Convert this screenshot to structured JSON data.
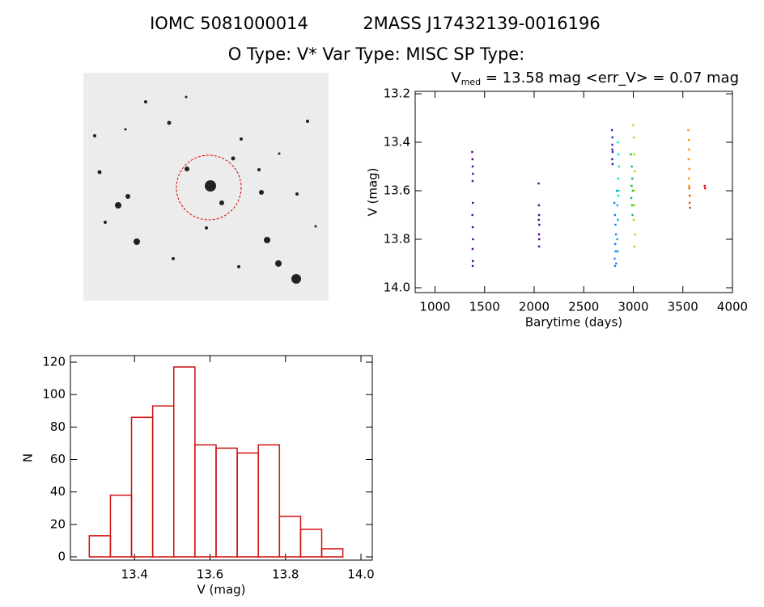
{
  "header": {
    "id1": "IOMC 5081000014",
    "id2": "2MASS J17432139-0016196",
    "line2": "O Type: V*  Var Type: MISC  SP Type:"
  },
  "chart_data": [
    {
      "type": "scatter",
      "title": {
        "main": "V",
        "sub": "med",
        "rest": " = 13.58 mag <err_V> = 0.07 mag"
      },
      "x_label": "Barytime (days)",
      "y_label": "V (mag)",
      "xlim": [
        800,
        4000
      ],
      "xticks": [
        1000,
        1500,
        2000,
        2500,
        3000,
        3500,
        4000
      ],
      "ylim": [
        14.02,
        13.19
      ],
      "yticks": [
        13.2,
        13.4,
        13.6,
        13.8,
        {
          "value": 14,
          "label": "14.0"
        }
      ],
      "series": [
        {
          "color": "#5a0090",
          "x": [
            1375,
            1378,
            1380,
            1382,
            1379,
            1381,
            1377,
            1380,
            1383,
            1379,
            1381,
            1380
          ],
          "values": [
            13.44,
            13.47,
            13.5,
            13.53,
            13.56,
            13.65,
            13.7,
            13.75,
            13.8,
            13.84,
            13.89,
            13.91
          ]
        },
        {
          "color": "#4b0090",
          "x": [
            2045,
            2048,
            2050,
            2052,
            2049,
            2051,
            2050,
            2047
          ],
          "values": [
            13.57,
            13.66,
            13.7,
            13.74,
            13.78,
            13.8,
            13.83,
            13.72
          ]
        },
        {
          "color": "#2020c0",
          "x": [
            2785,
            2790,
            2788,
            2792,
            2787,
            2791,
            2789
          ],
          "values": [
            13.35,
            13.38,
            13.41,
            13.44,
            13.47,
            13.49,
            13.43
          ]
        },
        {
          "color": "#1e78ff",
          "x": [
            2810,
            2815,
            2820,
            2825,
            2818,
            2822,
            2812,
            2828,
            2816
          ],
          "values": [
            13.65,
            13.7,
            13.74,
            13.78,
            13.82,
            13.85,
            13.88,
            13.9,
            13.91
          ]
        },
        {
          "color": "#00a8e8",
          "x": [
            2835,
            2840,
            2845,
            2838,
            2842
          ],
          "values": [
            13.6,
            13.66,
            13.72,
            13.8,
            13.85
          ]
        },
        {
          "color": "#00e0d0",
          "x": [
            2845,
            2850,
            2855,
            2848,
            2852,
            2849
          ],
          "values": [
            13.4,
            13.45,
            13.5,
            13.55,
            13.6,
            13.62
          ]
        },
        {
          "color": "#00c040",
          "x": [
            2975,
            2985,
            2990,
            2995,
            2980,
            2988,
            2992,
            2983
          ],
          "values": [
            13.45,
            13.5,
            13.55,
            13.6,
            13.63,
            13.66,
            13.7,
            13.58
          ]
        },
        {
          "color": "#a0e000",
          "x": [
            3000,
            3005,
            3010,
            3015,
            3008,
            3012,
            3003,
            3018,
            3010
          ],
          "values": [
            13.33,
            13.38,
            13.45,
            13.52,
            13.6,
            13.66,
            13.72,
            13.78,
            13.83
          ]
        },
        {
          "color": "#ff9000",
          "x": [
            3555,
            3560,
            3562,
            3558,
            3565,
            3560,
            3563
          ],
          "values": [
            13.35,
            13.39,
            13.43,
            13.47,
            13.51,
            13.55,
            13.58
          ]
        },
        {
          "color": "#d05000",
          "x": [
            3565,
            3570,
            3568,
            3572
          ],
          "values": [
            13.59,
            13.62,
            13.65,
            13.67
          ]
        },
        {
          "color": "#e00000",
          "x": [
            3720,
            3725
          ],
          "values": [
            13.58,
            13.59
          ]
        }
      ]
    },
    {
      "type": "histogram",
      "x_label": "V (mag)",
      "y_label": "N",
      "color": "#d01010",
      "bins": [
        13.28,
        13.336,
        13.392,
        13.448,
        13.504,
        13.56,
        13.616,
        13.672,
        13.728,
        13.784,
        13.84,
        13.896,
        13.952
      ],
      "counts": [
        13,
        38,
        86,
        93,
        117,
        69,
        67,
        64,
        69,
        25,
        17,
        5
      ],
      "xlim": [
        13.23,
        14.03
      ],
      "xticks": [
        13.4,
        13.6,
        13.8,
        {
          "value": 14,
          "label": "14.0"
        }
      ],
      "ylim": [
        -2,
        124
      ],
      "yticks": [
        0,
        20,
        40,
        60,
        80,
        100,
        120
      ]
    }
  ]
}
